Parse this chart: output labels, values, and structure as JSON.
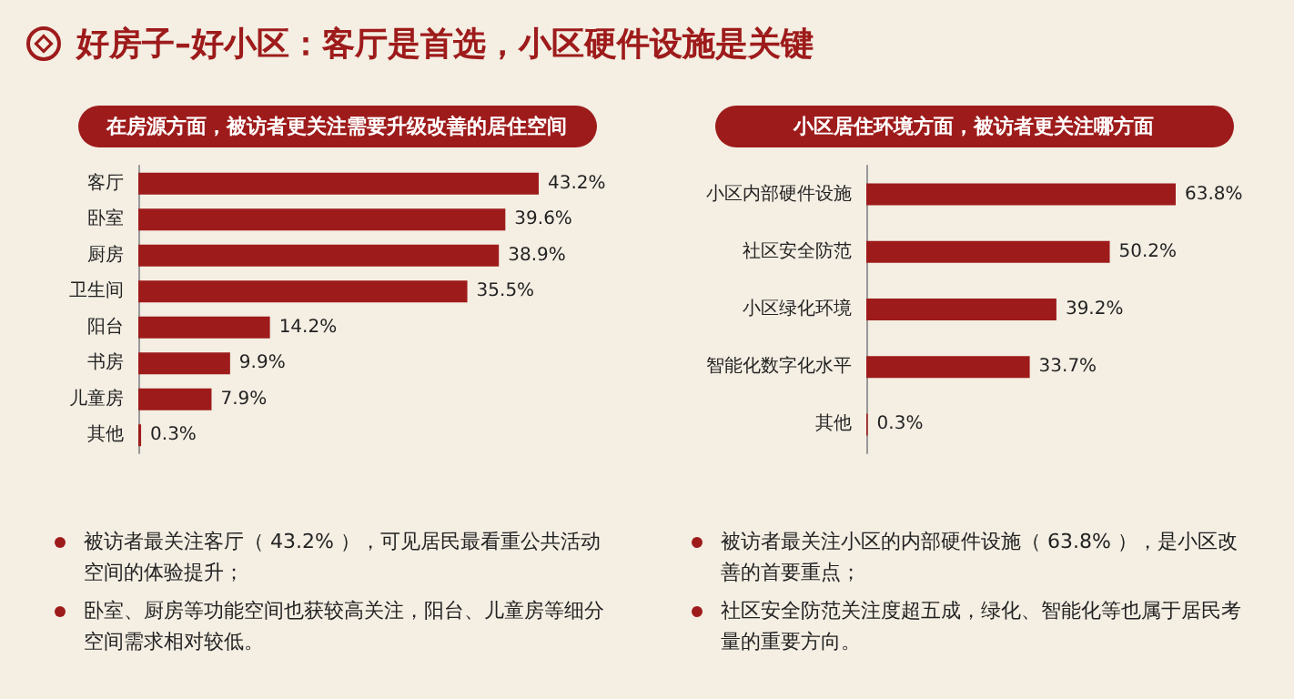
{
  "chart_data": [
    {
      "type": "bar",
      "orientation": "horizontal",
      "title": "好房子–好小区：客厅是首选，小区硬件设施是关键",
      "subtitle": "在房源方面，被访者更关注需要升级改善的居住空间",
      "categories": [
        "客厅",
        "卧室",
        "厨房",
        "卫生间",
        "阳台",
        "书房",
        "儿童房",
        "其他"
      ],
      "values": [
        43.2,
        39.6,
        38.9,
        35.5,
        14.2,
        9.9,
        7.9,
        0.3
      ],
      "value_labels": [
        "43.2%",
        "39.6%",
        "38.9%",
        "35.5%",
        "14.2%",
        "9.9%",
        "7.9%",
        "0.3%"
      ],
      "color": "#9e1b1b",
      "annotations": [
        "被访者最关注客厅（ 43.2% ），可见居民最看重公共活动空间的体验提升；",
        "卧室、厨房等功能空间也获较高关注，阳台、儿童房等细分空间需求相对较低。"
      ]
    },
    {
      "type": "bar",
      "orientation": "horizontal",
      "subtitle": "小区居住环境方面，被访者更关注哪方面",
      "categories": [
        "小区内部硬件设施",
        "社区安全防范",
        "小区绿化环境",
        "智能化数字化水平",
        "其他"
      ],
      "values": [
        63.8,
        50.2,
        39.2,
        33.7,
        0.3
      ],
      "value_labels": [
        "63.8%",
        "50.2%",
        "39.2%",
        "33.7%",
        "0.3%"
      ],
      "color": "#9e1b1b",
      "annotations": [
        "被访者最关注小区的内部硬件设施（ 63.8% ），是小区改善的首要重点；",
        "社区安全防范关注度超五成，绿化、智能化等也属于居民考量的重要方向。"
      ]
    }
  ]
}
